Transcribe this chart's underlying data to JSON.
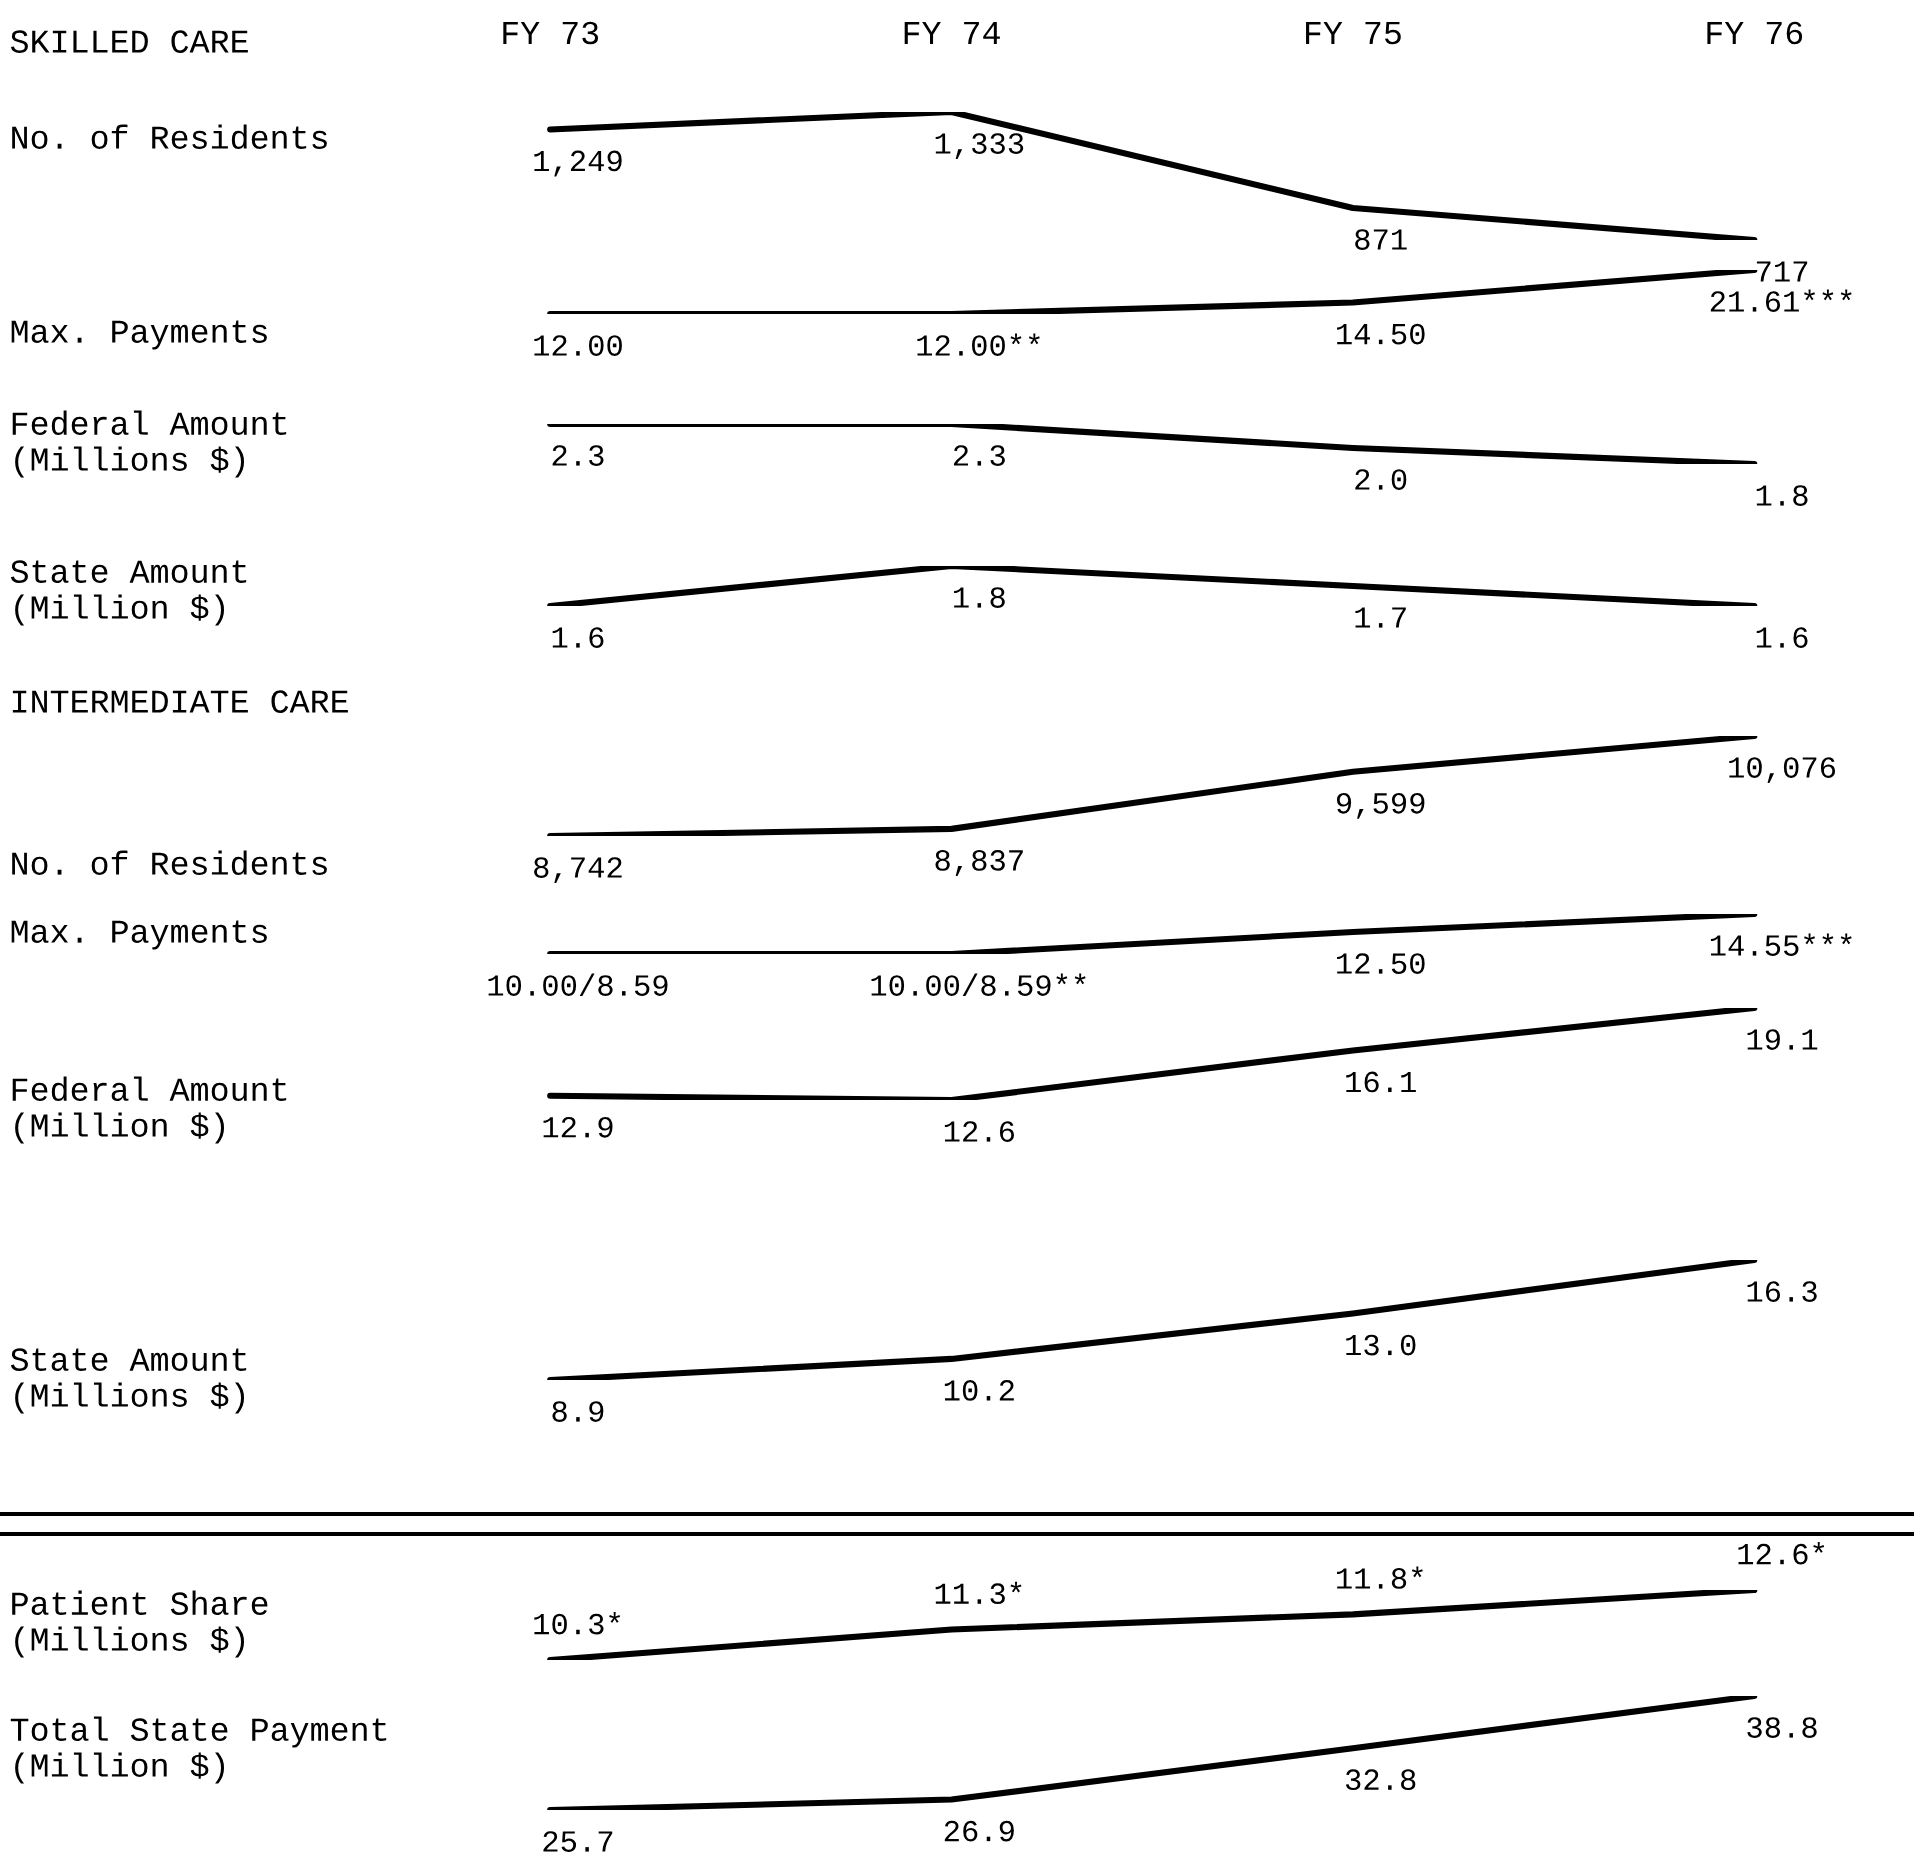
{
  "chart_data": [
    {
      "type": "line",
      "title": "SKILLED CARE",
      "ylabel": "No. of Residents",
      "categories": [
        "FY 73",
        "FY 74",
        "FY 75",
        "FY 76"
      ],
      "series": [
        {
          "color": "#000000",
          "values": [
            1249,
            1333,
            871,
            717
          ],
          "value_labels": [
            "1,249",
            "1,333",
            "871",
            "717"
          ]
        }
      ]
    },
    {
      "type": "line",
      "ylabel": "Max. Payments",
      "categories": [
        null,
        null,
        null,
        null
      ],
      "series": [
        {
          "color": "#000000",
          "values": [
            12.0,
            12.0,
            14.5,
            21.61
          ],
          "value_labels": [
            "12.00",
            "12.00**",
            "14.50",
            "21.61***"
          ]
        }
      ]
    },
    {
      "type": "line",
      "ylabel": "Federal Amount\n(Millions $)",
      "categories": [
        null,
        null,
        null,
        null
      ],
      "series": [
        {
          "color": "#000000",
          "values": [
            2.3,
            2.3,
            2.0,
            1.8
          ],
          "value_labels": [
            "2.3",
            "2.3",
            "2.0",
            "1.8"
          ]
        }
      ]
    },
    {
      "type": "line",
      "ylabel": "State Amount\n(Million $)",
      "categories": [
        null,
        null,
        null,
        null
      ],
      "series": [
        {
          "color": "#000000",
          "values": [
            1.6,
            1.8,
            1.7,
            1.6
          ],
          "value_labels": [
            "1.6",
            "1.8",
            "1.7",
            "1.6"
          ]
        }
      ]
    },
    {
      "type": "line",
      "title": "INTERMEDIATE CARE",
      "ylabel": "No. of Residents",
      "categories": [
        null,
        null,
        null,
        null
      ],
      "series": [
        {
          "color": "#000000",
          "values": [
            8742,
            8837,
            9599,
            10076
          ],
          "value_labels": [
            "8,742",
            "8,837",
            "9,599",
            "10,076"
          ]
        }
      ]
    },
    {
      "type": "line",
      "ylabel": "Max. Payments",
      "categories": [
        null,
        null,
        null,
        null
      ],
      "series": [
        {
          "color": "#000000",
          "values": [
            10.0,
            10.0,
            12.5,
            14.55
          ],
          "value_labels": [
            "10.00/8.59",
            "10.00/8.59**",
            "12.50",
            "14.55***"
          ]
        }
      ]
    },
    {
      "type": "line",
      "ylabel": "Federal Amount\n(Million $)",
      "categories": [
        null,
        null,
        null,
        null
      ],
      "series": [
        {
          "color": "#000000",
          "values": [
            12.9,
            12.6,
            16.1,
            19.1
          ],
          "value_labels": [
            "12.9",
            "12.6",
            "16.1",
            "19.1"
          ]
        }
      ]
    },
    {
      "type": "line",
      "ylabel": "State Amount\n(Millions $)",
      "categories": [
        null,
        null,
        null,
        null
      ],
      "series": [
        {
          "color": "#000000",
          "values": [
            8.9,
            10.2,
            13.0,
            16.3
          ],
          "value_labels": [
            "8.9",
            "10.2",
            "13.0",
            "16.3"
          ]
        }
      ]
    },
    {
      "type": "line",
      "ylabel": "Patient Share\n(Millions $)",
      "categories": [
        null,
        null,
        null,
        null
      ],
      "series": [
        {
          "color": "#000000",
          "values": [
            10.3,
            11.3,
            11.8,
            12.6
          ],
          "value_labels": [
            "10.3*",
            "11.3*",
            "11.8*",
            "12.6*"
          ]
        }
      ]
    },
    {
      "type": "line",
      "ylabel": "Total State Payment\n(Million $)",
      "categories": [
        null,
        null,
        null,
        null
      ],
      "series": [
        {
          "color": "#000000",
          "values": [
            25.7,
            26.9,
            32.8,
            38.8
          ],
          "value_labels": [
            "25.7",
            "26.9",
            "32.8",
            "38.8"
          ]
        }
      ]
    }
  ]
}
